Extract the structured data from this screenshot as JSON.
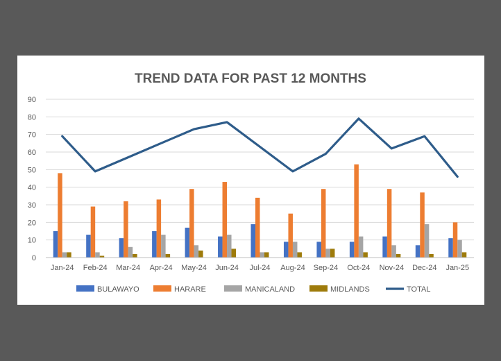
{
  "chart_data": {
    "type": "bar",
    "title": "TREND DATA FOR PAST 12 MONTHS",
    "categories": [
      "Jan-24",
      "Feb-24",
      "Mar-24",
      "Apr-24",
      "May-24",
      "Jun-24",
      "Jul-24",
      "Aug-24",
      "Sep-24",
      "Oct-24",
      "Nov-24",
      "Dec-24",
      "Jan-25"
    ],
    "ylim": [
      0,
      90
    ],
    "yticks": [
      0,
      10,
      20,
      30,
      40,
      50,
      60,
      70,
      80,
      90
    ],
    "grid": true,
    "legend_position": "bottom",
    "series": [
      {
        "name": "BULAWAYO",
        "kind": "bar",
        "color": "#4472C4",
        "values": [
          15,
          13,
          11,
          15,
          17,
          12,
          19,
          9,
          9,
          9,
          12,
          7,
          11
        ]
      },
      {
        "name": "HARARE",
        "kind": "bar",
        "color": "#ED7D31",
        "values": [
          48,
          29,
          32,
          33,
          39,
          43,
          34,
          25,
          39,
          53,
          39,
          37,
          20
        ]
      },
      {
        "name": "MANICALAND",
        "kind": "bar",
        "color": "#A5A5A5",
        "values": [
          3,
          3,
          6,
          13,
          7,
          13,
          3,
          9,
          5,
          12,
          7,
          19,
          10
        ]
      },
      {
        "name": "MIDLANDS",
        "kind": "bar",
        "color": "#9E7B0B",
        "values": [
          3,
          1,
          2,
          2,
          4,
          5,
          3,
          3,
          5,
          3,
          2,
          2,
          3
        ]
      },
      {
        "name": "TOTAL",
        "kind": "line",
        "color": "#2E5C8A",
        "values": [
          69,
          49,
          57,
          65,
          73,
          77,
          63,
          49,
          59,
          79,
          62,
          69,
          46
        ]
      }
    ]
  }
}
